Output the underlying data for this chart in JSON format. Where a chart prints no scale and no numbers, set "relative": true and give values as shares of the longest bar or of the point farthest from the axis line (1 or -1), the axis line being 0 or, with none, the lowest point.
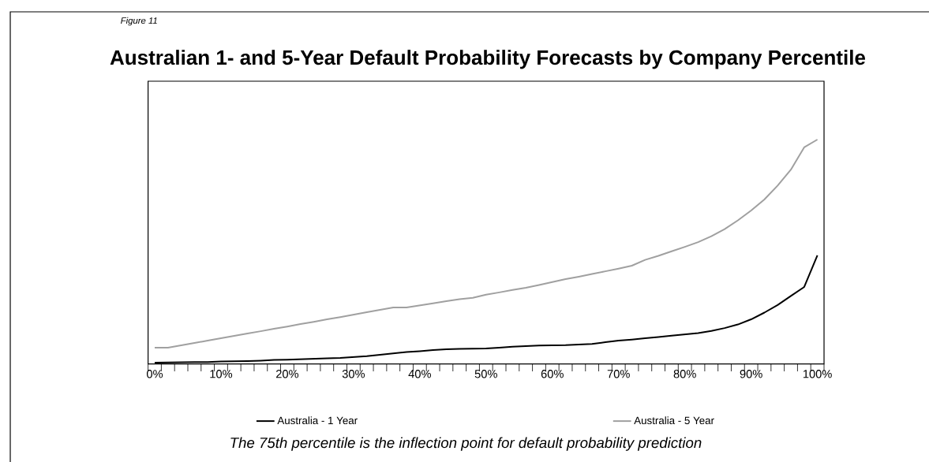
{
  "chart_data": {
    "type": "line",
    "title": "Australian 1- and 5-Year Default Probability Forecasts by Company Percentile",
    "annotations": [
      "Figure 11",
      "The 75th percentile is the inflection point for default probability prediction"
    ],
    "relative": true,
    "x": [
      0,
      2,
      4,
      6,
      8,
      10,
      12,
      14,
      16,
      18,
      20,
      22,
      24,
      26,
      28,
      30,
      32,
      34,
      36,
      38,
      40,
      42,
      44,
      46,
      48,
      50,
      52,
      54,
      56,
      58,
      60,
      62,
      64,
      66,
      68,
      70,
      72,
      74,
      76,
      78,
      80,
      82,
      84,
      86,
      88,
      90,
      92,
      94,
      96,
      98,
      100
    ],
    "xlim": [
      -1,
      101
    ],
    "xticks": [
      {
        "value": 0,
        "label": "0%"
      },
      {
        "value": 10,
        "label": "10%"
      },
      {
        "value": 20,
        "label": "20%"
      },
      {
        "value": 30,
        "label": "30%"
      },
      {
        "value": 40,
        "label": "40%"
      },
      {
        "value": 50,
        "label": "50%"
      },
      {
        "value": 60,
        "label": "60%"
      },
      {
        "value": 70,
        "label": "70%"
      },
      {
        "value": 80,
        "label": "80%"
      },
      {
        "value": 90,
        "label": "90%"
      },
      {
        "value": 100,
        "label": "100%"
      },
      {
        "value": -1,
        "label": null
      },
      {
        "value": 1,
        "label": null
      },
      {
        "value": 3,
        "label": null
      },
      {
        "value": 5,
        "label": null
      },
      {
        "value": 7,
        "label": null
      },
      {
        "value": 9,
        "label": null
      },
      {
        "value": 11,
        "label": null
      },
      {
        "value": 13,
        "label": null
      },
      {
        "value": 15,
        "label": null
      },
      {
        "value": 17,
        "label": null
      },
      {
        "value": 19,
        "label": null
      },
      {
        "value": 21,
        "label": null
      },
      {
        "value": 23,
        "label": null
      },
      {
        "value": 25,
        "label": null
      },
      {
        "value": 27,
        "label": null
      },
      {
        "value": 29,
        "label": null
      },
      {
        "value": 31,
        "label": null
      },
      {
        "value": 33,
        "label": null
      },
      {
        "value": 35,
        "label": null
      },
      {
        "value": 37,
        "label": null
      },
      {
        "value": 39,
        "label": null
      },
      {
        "value": 41,
        "label": null
      },
      {
        "value": 43,
        "label": null
      },
      {
        "value": 45,
        "label": null
      },
      {
        "value": 47,
        "label": null
      },
      {
        "value": 49,
        "label": null
      },
      {
        "value": 51,
        "label": null
      },
      {
        "value": 53,
        "label": null
      },
      {
        "value": 55,
        "label": null
      },
      {
        "value": 57,
        "label": null
      },
      {
        "value": 59,
        "label": null
      },
      {
        "value": 61,
        "label": null
      },
      {
        "value": 63,
        "label": null
      },
      {
        "value": 65,
        "label": null
      },
      {
        "value": 67,
        "label": null
      },
      {
        "value": 69,
        "label": null
      },
      {
        "value": 71,
        "label": null
      },
      {
        "value": 73,
        "label": null
      },
      {
        "value": 75,
        "label": null
      },
      {
        "value": 77,
        "label": null
      },
      {
        "value": 79,
        "label": null
      },
      {
        "value": 81,
        "label": null
      },
      {
        "value": 83,
        "label": null
      },
      {
        "value": 85,
        "label": null
      },
      {
        "value": 87,
        "label": null
      },
      {
        "value": 89,
        "label": null
      },
      {
        "value": 91,
        "label": null
      },
      {
        "value": 93,
        "label": null
      },
      {
        "value": 95,
        "label": null
      },
      {
        "value": 97,
        "label": null
      },
      {
        "value": 99,
        "label": null
      },
      {
        "value": 101,
        "label": null
      }
    ],
    "series": [
      {
        "name": "Australia - 1 Year",
        "color": "#000000",
        "values": [
          0.006,
          0.007,
          0.008,
          0.009,
          0.009,
          0.011,
          0.012,
          0.013,
          0.015,
          0.018,
          0.019,
          0.021,
          0.023,
          0.025,
          0.027,
          0.031,
          0.035,
          0.041,
          0.047,
          0.053,
          0.057,
          0.062,
          0.066,
          0.067,
          0.068,
          0.069,
          0.073,
          0.077,
          0.08,
          0.082,
          0.083,
          0.084,
          0.087,
          0.089,
          0.097,
          0.104,
          0.109,
          0.115,
          0.12,
          0.126,
          0.132,
          0.138,
          0.147,
          0.16,
          0.176,
          0.199,
          0.229,
          0.263,
          0.303,
          0.343,
          0.484
        ]
      },
      {
        "name": "Australia - 5 Year",
        "color": "#a0a0a0",
        "values": [
          0.073,
          0.073,
          0.083,
          0.094,
          0.104,
          0.115,
          0.125,
          0.136,
          0.146,
          0.157,
          0.167,
          0.178,
          0.188,
          0.199,
          0.209,
          0.22,
          0.231,
          0.241,
          0.252,
          0.252,
          0.261,
          0.27,
          0.28,
          0.289,
          0.295,
          0.309,
          0.319,
          0.33,
          0.34,
          0.352,
          0.365,
          0.378,
          0.389,
          0.401,
          0.413,
          0.425,
          0.438,
          0.464,
          0.482,
          0.502,
          0.522,
          0.543,
          0.569,
          0.601,
          0.64,
          0.684,
          0.733,
          0.795,
          0.866,
          0.965,
          1
        ]
      }
    ],
    "legend": "bottom",
    "grid": false,
    "marker": "none",
    "line_style": "solid"
  }
}
